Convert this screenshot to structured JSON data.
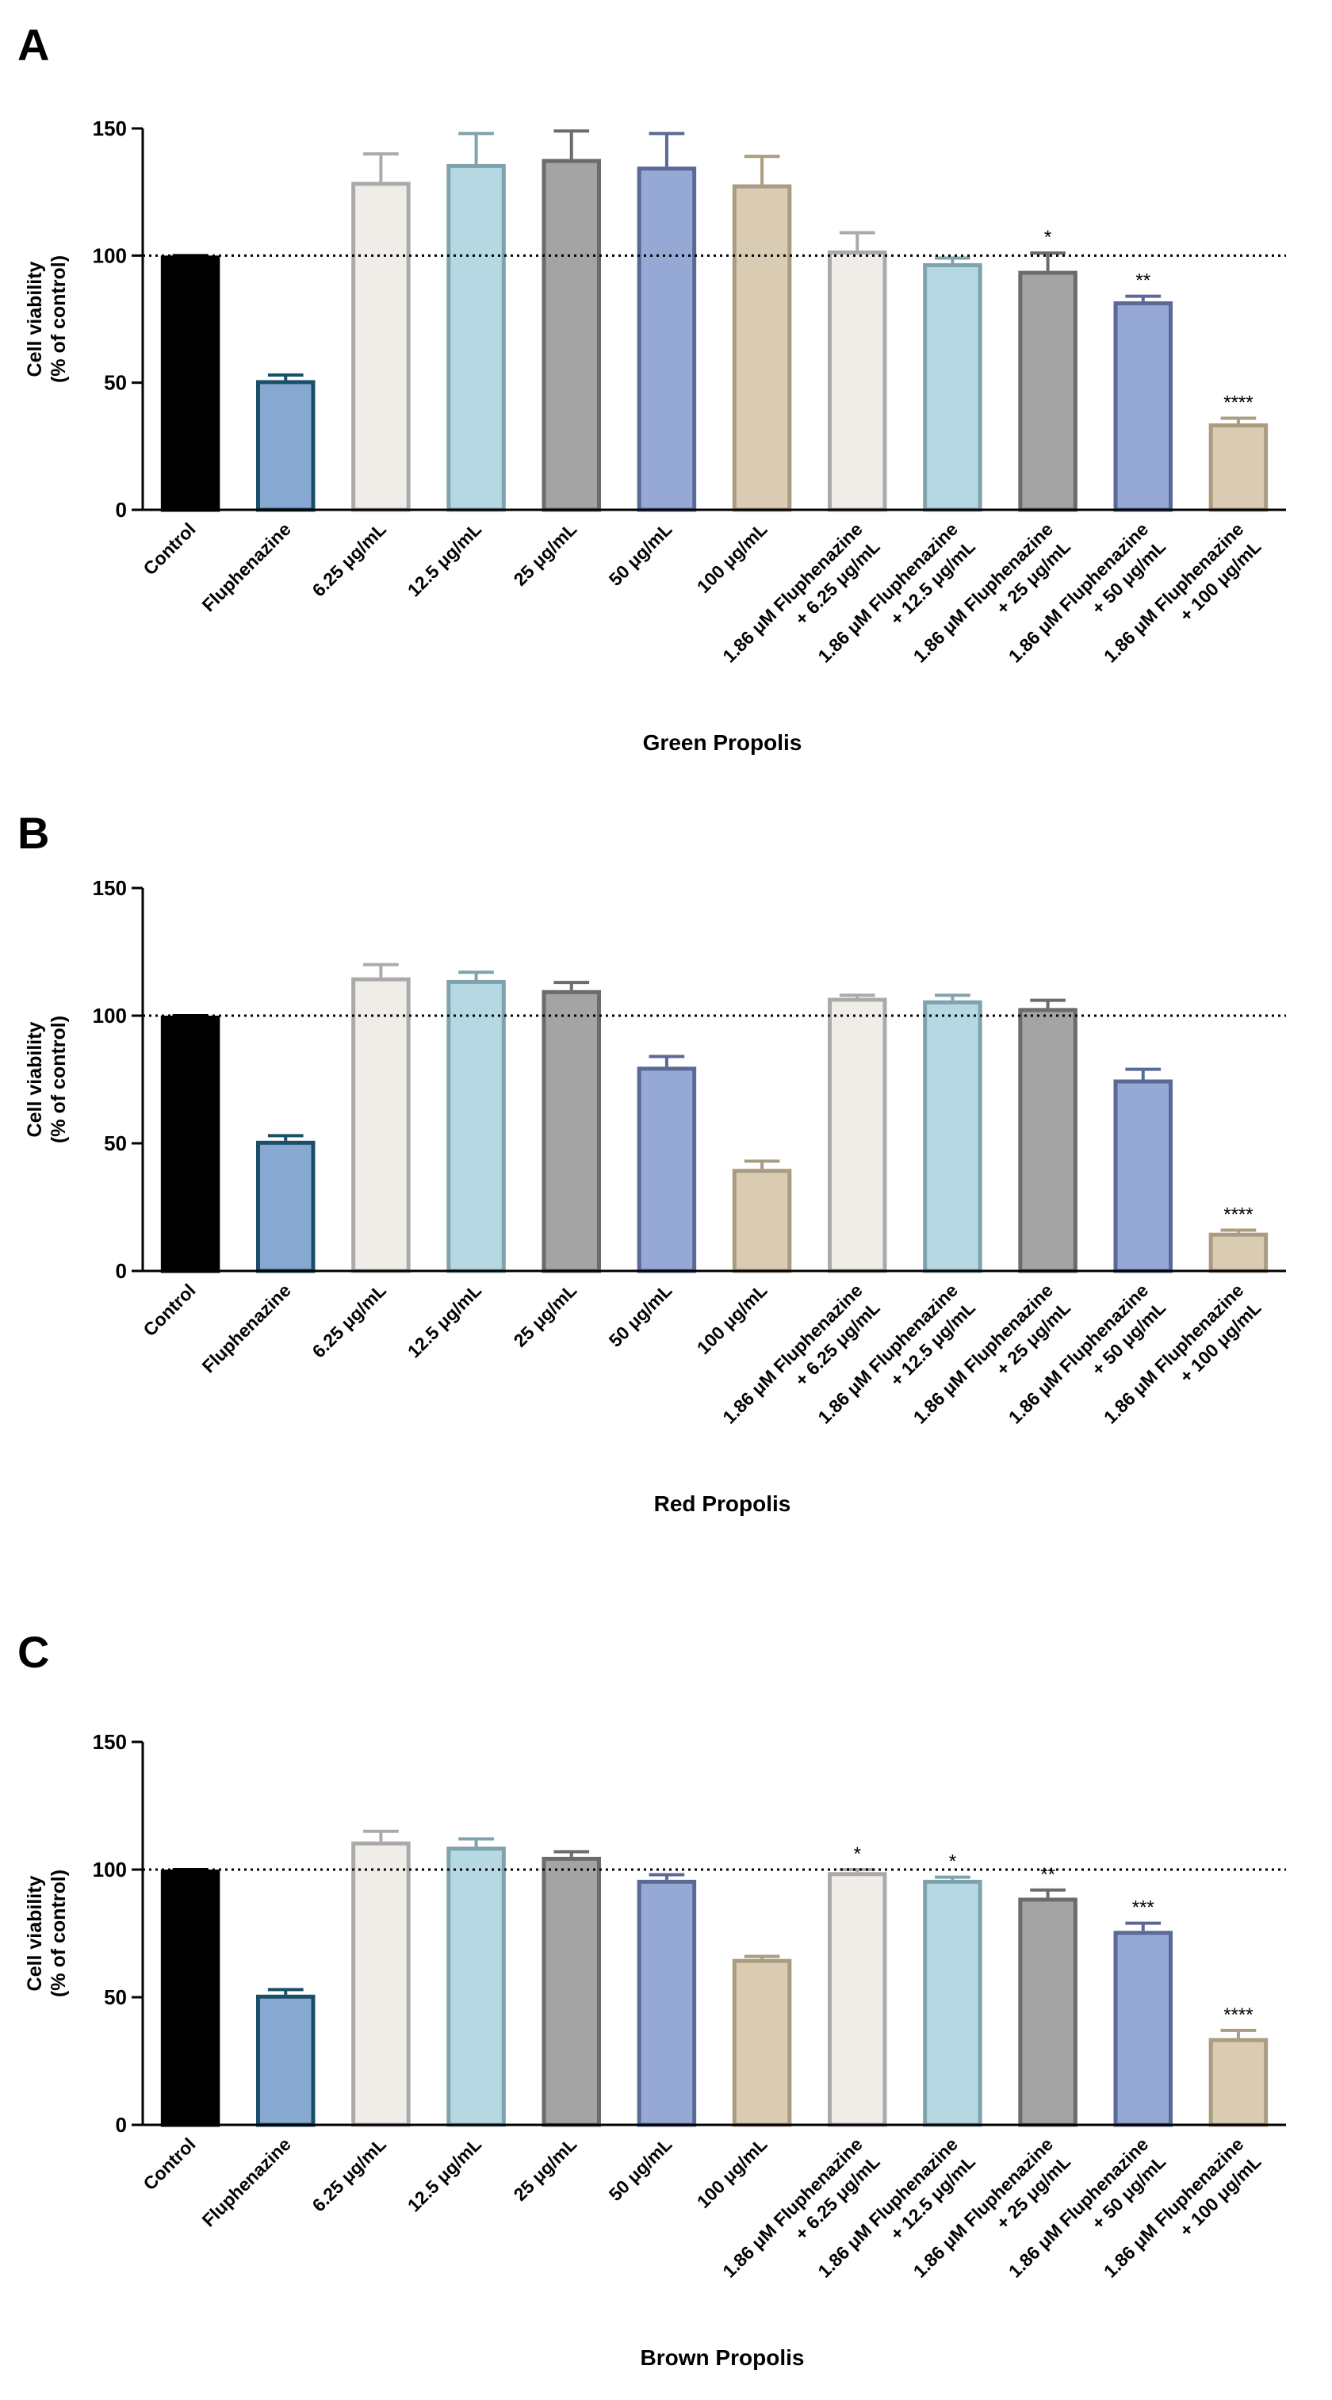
{
  "chart_data": [
    {
      "type": "bar",
      "panel": "A",
      "xlabel": "Green Propolis",
      "ylabel": [
        "Cell viability",
        "(% of control)"
      ],
      "categories": [
        "Control",
        "Fluphenazine",
        "6.25 μg/mL",
        "12.5 μg/mL",
        "25 μg/mL",
        "50 μg/mL",
        "100 μg/mL",
        [
          "1.86 μM Fluphenazine",
          "+ 6.25 μg/mL"
        ],
        [
          "1.86 μM Fluphenazine",
          "+ 12.5 μg/mL"
        ],
        [
          "1.86 μM Fluphenazine",
          "+ 25 μg/mL"
        ],
        [
          "1.86 μM Fluphenazine",
          "+ 50 μg/mL"
        ],
        [
          "1.86 μM Fluphenazine",
          "+ 100 μg/mL"
        ]
      ],
      "values": [
        100,
        51,
        129,
        136,
        138,
        135,
        128,
        102,
        97,
        94,
        82,
        34
      ],
      "errors": [
        0,
        2,
        11,
        12,
        11,
        13,
        11,
        7,
        2,
        7,
        2,
        2
      ],
      "colors": [
        "#000000",
        "#87a9d1",
        "#f0ede8",
        "#b5d8e2",
        "#a4a4a4",
        "#96a8d4",
        "#d9ccb3",
        "#f0ede8",
        "#b5d8e2",
        "#a4a4a4",
        "#96a8d4",
        "#d9ccb3"
      ],
      "edge_colors": [
        "#000000",
        "#1a4f6a",
        "#aaaaaa",
        "#7fa3ad",
        "#6b6b6b",
        "#5a6a96",
        "#a99c80",
        "#aaaaaa",
        "#7fa3ad",
        "#6b6b6b",
        "#5a6a96",
        "#a99c80"
      ],
      "annotations": [
        {
          "index": 9,
          "text": "*"
        },
        {
          "index": 10,
          "text": "**"
        },
        {
          "index": 11,
          "text": "****"
        }
      ],
      "refline": 100,
      "ylim": [
        0,
        150
      ],
      "yticks": [
        0,
        50,
        100,
        150
      ]
    },
    {
      "type": "bar",
      "panel": "B",
      "xlabel": "Red Propolis",
      "ylabel": [
        "Cell viability",
        "(% of control)"
      ],
      "categories": [
        "Control",
        "Fluphenazine",
        "6.25 μg/mL",
        "12.5 μg/mL",
        "25 μg/mL",
        "50 μg/mL",
        "100 μg/mL",
        [
          "1.86 μM Fluphenazine",
          "+ 6.25 μg/mL"
        ],
        [
          "1.86 μM Fluphenazine",
          "+ 12.5 μg/mL"
        ],
        [
          "1.86 μM Fluphenazine",
          "+ 25 μg/mL"
        ],
        [
          "1.86 μM Fluphenazine",
          "+ 50 μg/mL"
        ],
        [
          "1.86 μM Fluphenazine",
          "+ 100 μg/mL"
        ]
      ],
      "values": [
        100,
        51,
        115,
        114,
        110,
        80,
        40,
        107,
        106,
        103,
        75,
        15
      ],
      "errors": [
        0,
        2,
        5,
        3,
        3,
        4,
        3,
        1,
        2,
        3,
        4,
        1
      ],
      "colors": [
        "#000000",
        "#87a9d1",
        "#f0ede8",
        "#b5d8e2",
        "#a4a4a4",
        "#96a8d4",
        "#d9ccb3",
        "#f0ede8",
        "#b5d8e2",
        "#a4a4a4",
        "#96a8d4",
        "#d9ccb3"
      ],
      "edge_colors": [
        "#000000",
        "#1a4f6a",
        "#aaaaaa",
        "#7fa3ad",
        "#6b6b6b",
        "#5a6a96",
        "#a99c80",
        "#aaaaaa",
        "#7fa3ad",
        "#6b6b6b",
        "#5a6a96",
        "#a99c80"
      ],
      "annotations": [
        {
          "index": 11,
          "text": "****"
        }
      ],
      "refline": 100,
      "ylim": [
        0,
        150
      ],
      "yticks": [
        0,
        50,
        100,
        150
      ]
    },
    {
      "type": "bar",
      "panel": "C",
      "xlabel": "Brown Propolis",
      "ylabel": [
        "Cell viability",
        "(% of control)"
      ],
      "categories": [
        "Control",
        "Fluphenazine",
        "6.25 μg/mL",
        "12.5 μg/mL",
        "25 μg/mL",
        "50 μg/mL",
        "100 μg/mL",
        [
          "1.86 μM Fluphenazine",
          "+ 6.25 μg/mL"
        ],
        [
          "1.86 μM Fluphenazine",
          "+ 12.5 μg/mL"
        ],
        [
          "1.86 μM Fluphenazine",
          "+ 25 μg/mL"
        ],
        [
          "1.86 μM Fluphenazine",
          "+ 50 μg/mL"
        ],
        [
          "1.86 μM Fluphenazine",
          "+ 100 μg/mL"
        ]
      ],
      "values": [
        100,
        51,
        111,
        109,
        105,
        96,
        65,
        99,
        96,
        89,
        76,
        34
      ],
      "errors": [
        0,
        2,
        4,
        3,
        2,
        2,
        1,
        1,
        1,
        3,
        3,
        3
      ],
      "colors": [
        "#000000",
        "#87a9d1",
        "#f0ede8",
        "#b5d8e2",
        "#a4a4a4",
        "#96a8d4",
        "#d9ccb3",
        "#f0ede8",
        "#b5d8e2",
        "#a4a4a4",
        "#96a8d4",
        "#d9ccb3"
      ],
      "edge_colors": [
        "#000000",
        "#1a4f6a",
        "#aaaaaa",
        "#7fa3ad",
        "#6b6b6b",
        "#5a6a96",
        "#a99c80",
        "#aaaaaa",
        "#7fa3ad",
        "#6b6b6b",
        "#5a6a96",
        "#a99c80"
      ],
      "annotations": [
        {
          "index": 7,
          "text": "*"
        },
        {
          "index": 8,
          "text": "*"
        },
        {
          "index": 9,
          "text": "**"
        },
        {
          "index": 10,
          "text": "***"
        },
        {
          "index": 11,
          "text": "****"
        }
      ],
      "refline": 100,
      "ylim": [
        0,
        150
      ],
      "yticks": [
        0,
        50,
        100,
        150
      ]
    }
  ]
}
